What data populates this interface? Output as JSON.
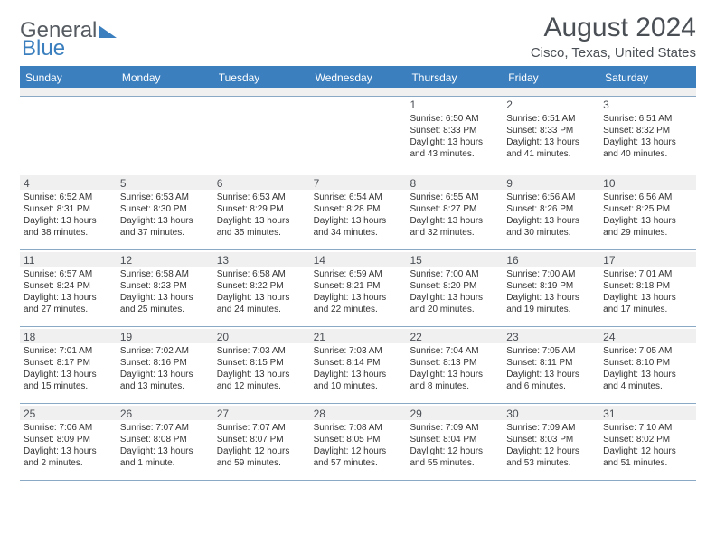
{
  "brand": {
    "part1": "General",
    "part2": "Blue"
  },
  "title": "August 2024",
  "location": "Cisco, Texas, United States",
  "colors": {
    "accent": "#3b7fbf",
    "text": "#333333",
    "heading": "#4a4f55",
    "row_alt": "#f0f0f0",
    "divider": "#8aa9c4",
    "bg": "#ffffff"
  },
  "typography": {
    "title_fontsize": 30,
    "subtitle_fontsize": 15,
    "dayhead_fontsize": 12,
    "daynum_fontsize": 12,
    "info_fontsize": 10
  },
  "daynames": [
    "Sunday",
    "Monday",
    "Tuesday",
    "Wednesday",
    "Thursday",
    "Friday",
    "Saturday"
  ],
  "weeks": [
    [
      null,
      null,
      null,
      null,
      {
        "n": "1",
        "sr": "6:50 AM",
        "ss": "8:33 PM",
        "dl": "13 hours and 43 minutes."
      },
      {
        "n": "2",
        "sr": "6:51 AM",
        "ss": "8:33 PM",
        "dl": "13 hours and 41 minutes."
      },
      {
        "n": "3",
        "sr": "6:51 AM",
        "ss": "8:32 PM",
        "dl": "13 hours and 40 minutes."
      }
    ],
    [
      {
        "n": "4",
        "sr": "6:52 AM",
        "ss": "8:31 PM",
        "dl": "13 hours and 38 minutes."
      },
      {
        "n": "5",
        "sr": "6:53 AM",
        "ss": "8:30 PM",
        "dl": "13 hours and 37 minutes."
      },
      {
        "n": "6",
        "sr": "6:53 AM",
        "ss": "8:29 PM",
        "dl": "13 hours and 35 minutes."
      },
      {
        "n": "7",
        "sr": "6:54 AM",
        "ss": "8:28 PM",
        "dl": "13 hours and 34 minutes."
      },
      {
        "n": "8",
        "sr": "6:55 AM",
        "ss": "8:27 PM",
        "dl": "13 hours and 32 minutes."
      },
      {
        "n": "9",
        "sr": "6:56 AM",
        "ss": "8:26 PM",
        "dl": "13 hours and 30 minutes."
      },
      {
        "n": "10",
        "sr": "6:56 AM",
        "ss": "8:25 PM",
        "dl": "13 hours and 29 minutes."
      }
    ],
    [
      {
        "n": "11",
        "sr": "6:57 AM",
        "ss": "8:24 PM",
        "dl": "13 hours and 27 minutes."
      },
      {
        "n": "12",
        "sr": "6:58 AM",
        "ss": "8:23 PM",
        "dl": "13 hours and 25 minutes."
      },
      {
        "n": "13",
        "sr": "6:58 AM",
        "ss": "8:22 PM",
        "dl": "13 hours and 24 minutes."
      },
      {
        "n": "14",
        "sr": "6:59 AM",
        "ss": "8:21 PM",
        "dl": "13 hours and 22 minutes."
      },
      {
        "n": "15",
        "sr": "7:00 AM",
        "ss": "8:20 PM",
        "dl": "13 hours and 20 minutes."
      },
      {
        "n": "16",
        "sr": "7:00 AM",
        "ss": "8:19 PM",
        "dl": "13 hours and 19 minutes."
      },
      {
        "n": "17",
        "sr": "7:01 AM",
        "ss": "8:18 PM",
        "dl": "13 hours and 17 minutes."
      }
    ],
    [
      {
        "n": "18",
        "sr": "7:01 AM",
        "ss": "8:17 PM",
        "dl": "13 hours and 15 minutes."
      },
      {
        "n": "19",
        "sr": "7:02 AM",
        "ss": "8:16 PM",
        "dl": "13 hours and 13 minutes."
      },
      {
        "n": "20",
        "sr": "7:03 AM",
        "ss": "8:15 PM",
        "dl": "13 hours and 12 minutes."
      },
      {
        "n": "21",
        "sr": "7:03 AM",
        "ss": "8:14 PM",
        "dl": "13 hours and 10 minutes."
      },
      {
        "n": "22",
        "sr": "7:04 AM",
        "ss": "8:13 PM",
        "dl": "13 hours and 8 minutes."
      },
      {
        "n": "23",
        "sr": "7:05 AM",
        "ss": "8:11 PM",
        "dl": "13 hours and 6 minutes."
      },
      {
        "n": "24",
        "sr": "7:05 AM",
        "ss": "8:10 PM",
        "dl": "13 hours and 4 minutes."
      }
    ],
    [
      {
        "n": "25",
        "sr": "7:06 AM",
        "ss": "8:09 PM",
        "dl": "13 hours and 2 minutes."
      },
      {
        "n": "26",
        "sr": "7:07 AM",
        "ss": "8:08 PM",
        "dl": "13 hours and 1 minute."
      },
      {
        "n": "27",
        "sr": "7:07 AM",
        "ss": "8:07 PM",
        "dl": "12 hours and 59 minutes."
      },
      {
        "n": "28",
        "sr": "7:08 AM",
        "ss": "8:05 PM",
        "dl": "12 hours and 57 minutes."
      },
      {
        "n": "29",
        "sr": "7:09 AM",
        "ss": "8:04 PM",
        "dl": "12 hours and 55 minutes."
      },
      {
        "n": "30",
        "sr": "7:09 AM",
        "ss": "8:03 PM",
        "dl": "12 hours and 53 minutes."
      },
      {
        "n": "31",
        "sr": "7:10 AM",
        "ss": "8:02 PM",
        "dl": "12 hours and 51 minutes."
      }
    ]
  ],
  "labels": {
    "sunrise": "Sunrise:",
    "sunset": "Sunset:",
    "daylight": "Daylight:"
  }
}
